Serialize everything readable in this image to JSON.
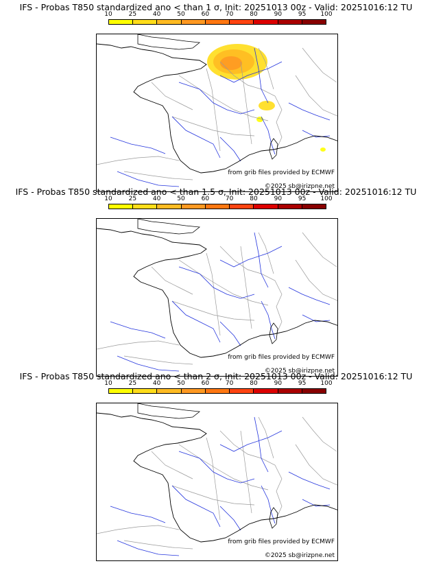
{
  "colorbar": {
    "ticks": [
      "10",
      "25",
      "40",
      "50",
      "60",
      "70",
      "80",
      "90",
      "95",
      "100"
    ],
    "colors": [
      "#ffff00",
      "#ffdd1a",
      "#ffbb22",
      "#ff9922",
      "#ff7711",
      "#ff4411",
      "#dd0000",
      "#aa0000",
      "#880000"
    ]
  },
  "panels": [
    {
      "title": "IFS - Probas T850  standardized ano < than 1 σ, Init: 20251013 00z - Valid: 20251016:12 TU",
      "credit_1": "from grib files provided by ECMWF",
      "credit_2": "©2025 sb@irizpne.net"
    },
    {
      "title": "IFS - Probas T850  standardized ano < than 1.5 σ, Init: 20251013 00z - Valid: 20251016:12 TU",
      "credit_1": "from grib files provided by ECMWF",
      "credit_2": "©2025 sb@irizpne.net"
    },
    {
      "title": "IFS - Probas T850  standardized ano < than 2 σ, Init: 20251013 00z - Valid: 20251016:12 TU",
      "credit_1": "from grib files provided by ECMWF",
      "credit_2": "©2025 sb@irizpne.net"
    }
  ],
  "colors": {
    "coast": "#000000",
    "borders": "#999999",
    "rivers": "#2233dd"
  }
}
